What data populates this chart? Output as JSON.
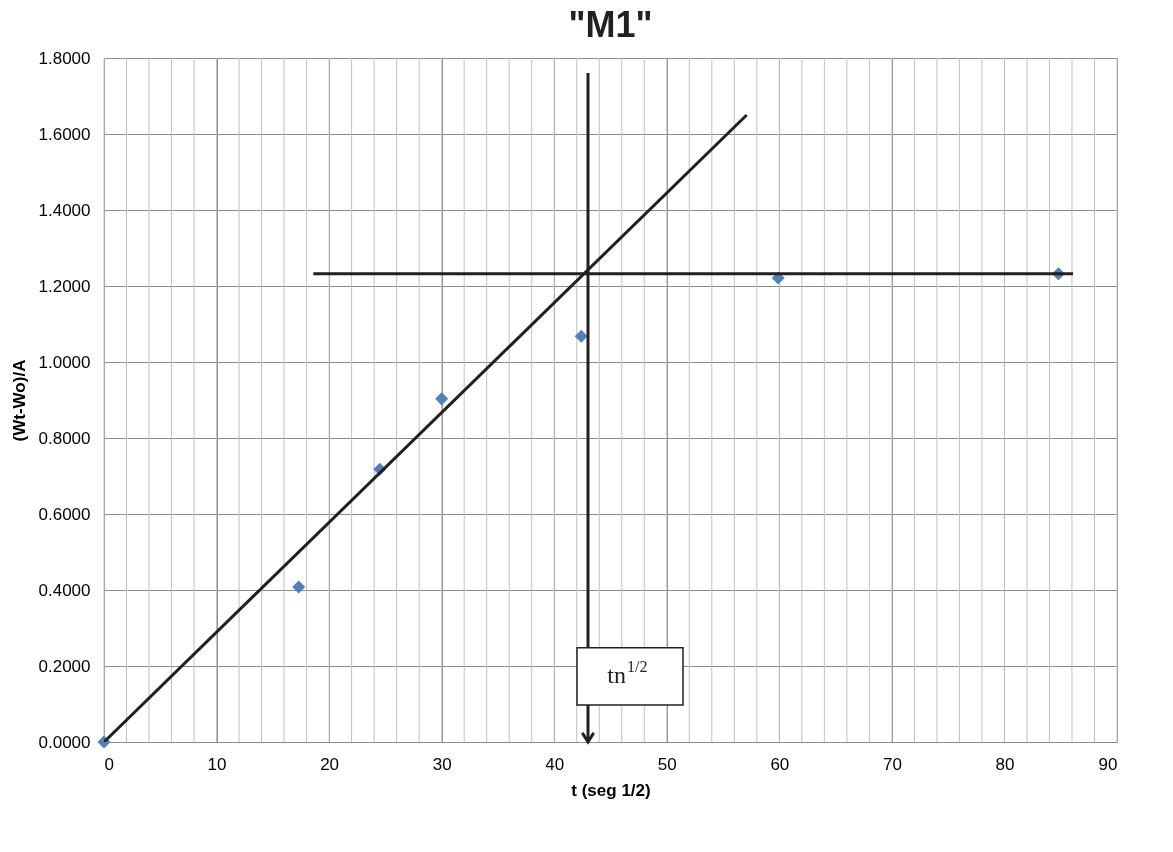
{
  "chart_data": {
    "type": "scatter",
    "title": "\"M1\"",
    "xlabel": "t (seg 1/2)",
    "ylabel": "(Wt-Wo)/A",
    "xlim": [
      0,
      90
    ],
    "xticks": [
      0,
      10,
      20,
      30,
      40,
      50,
      60,
      70,
      80,
      90
    ],
    "ylim": [
      0,
      1.8
    ],
    "yticks": [
      {
        "value": 0,
        "label": "0.0000"
      },
      {
        "value": 0.2,
        "label": "0.2000"
      },
      {
        "value": 0.4,
        "label": "0.4000"
      },
      {
        "value": 0.6,
        "label": "0.6000"
      },
      {
        "value": 0.8,
        "label": "0.8000"
      },
      {
        "value": 1.0,
        "label": "1.0000"
      },
      {
        "value": 1.2,
        "label": "1.2000"
      },
      {
        "value": 1.4,
        "label": "1.4000"
      },
      {
        "value": 1.6,
        "label": "1.6000"
      },
      {
        "value": 1.8,
        "label": "1.8000"
      }
    ],
    "grid": true,
    "series": [
      {
        "color": "#4f81bd",
        "marker": "diamond",
        "x": [
          0,
          17.3,
          24.5,
          30.0,
          42.4,
          59.9,
          84.8
        ],
        "values": [
          0.0,
          0.408,
          0.718,
          0.903,
          1.068,
          1.221,
          1.232
        ]
      },
      {
        "type": "line",
        "color": "#231f20",
        "marker": "none",
        "line_style": "solid",
        "x": [
          0,
          57.1
        ],
        "values": [
          0.0,
          1.65
        ]
      },
      {
        "type": "line",
        "color": "#231f20",
        "marker": "none",
        "line_style": "solid",
        "x": [
          18.6,
          86.1
        ],
        "values": [
          1.232,
          1.232
        ]
      }
    ],
    "ref_lines": [
      {
        "axis": "x",
        "value": 43.0,
        "label": "tn$^{1/2}$",
        "color": "#231f20",
        "line_style": "solid"
      }
    ]
  }
}
